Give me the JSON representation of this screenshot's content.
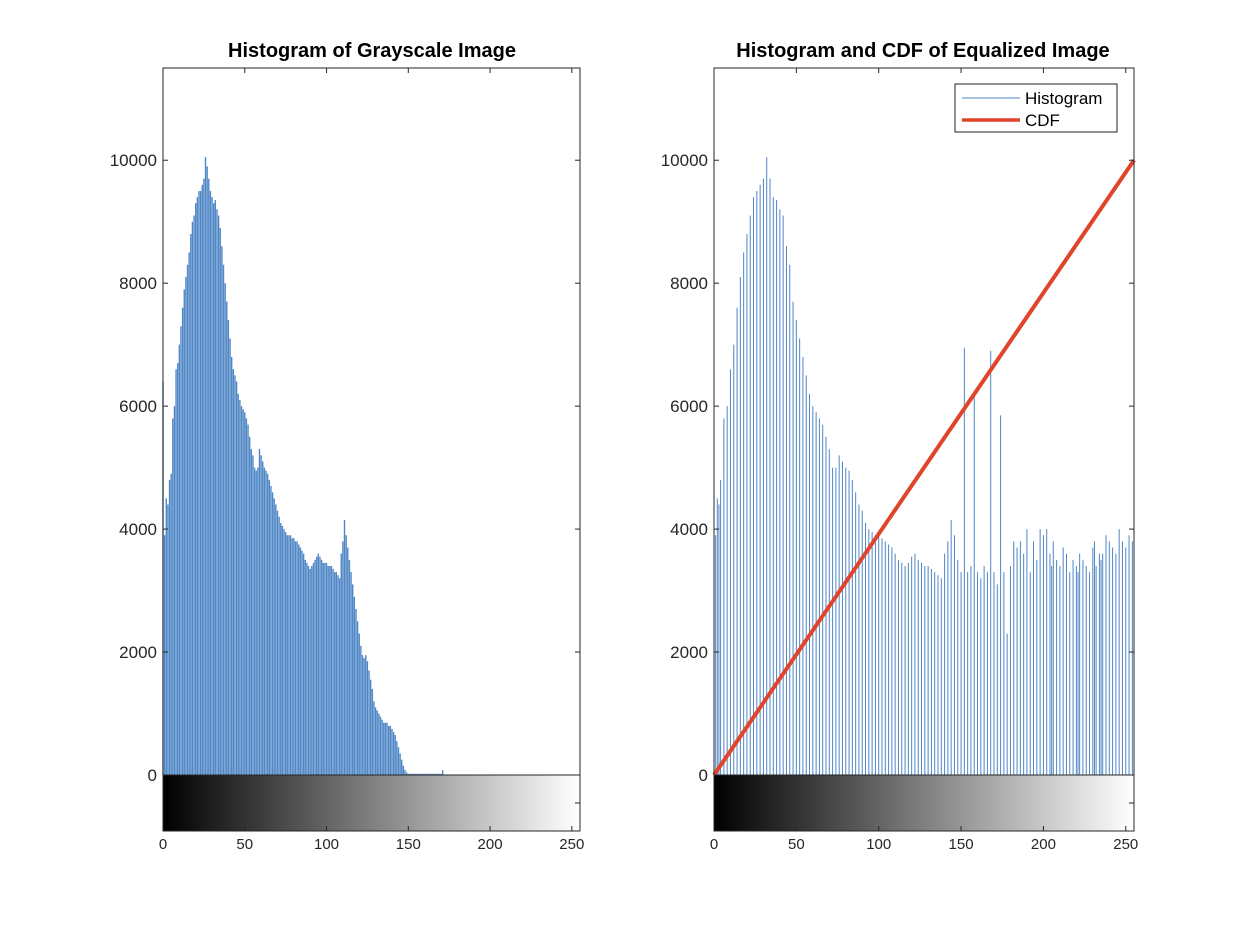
{
  "colors": {
    "histogram": "#4f86c6",
    "cdf": "#e0442a",
    "axis": "#262626"
  },
  "chart_data": [
    {
      "type": "bar",
      "title": "Histogram of Grayscale Image",
      "xlim": [
        0,
        255
      ],
      "ylim": [
        0,
        11500
      ],
      "yticks": [
        0,
        2000,
        4000,
        6000,
        8000,
        10000
      ],
      "xticks": [
        0,
        50,
        100,
        150,
        200,
        250
      ],
      "colorbar": "grayscale 0-255 below x-axis",
      "series": [
        {
          "x_start": 0,
          "values": [
            6400,
            3900,
            4500,
            4400,
            4800,
            4900,
            5800,
            6000,
            6600,
            6700,
            7000,
            7300,
            7600,
            7900,
            8100,
            8300,
            8500,
            8800,
            9000,
            9100,
            9300,
            9400,
            9500,
            9500,
            9600,
            9700,
            10050,
            9900,
            9700,
            9500,
            9400,
            9300,
            9350,
            9200,
            9100,
            8900,
            8600,
            8300,
            8000,
            7700,
            7400,
            7100,
            6800,
            6600,
            6500,
            6400,
            6200,
            6100,
            6000,
            5950,
            5900,
            5800,
            5700,
            5500,
            5300,
            5200,
            5000,
            4950,
            5000,
            5300,
            5200,
            5100,
            5000,
            4950,
            4900,
            4800,
            4700,
            4600,
            4500,
            4400,
            4300,
            4200,
            4100,
            4050,
            4000,
            3950,
            3900,
            3900,
            3900,
            3850,
            3850,
            3800,
            3800,
            3750,
            3700,
            3650,
            3600,
            3500,
            3450,
            3400,
            3350,
            3400,
            3450,
            3500,
            3550,
            3600,
            3550,
            3500,
            3450,
            3450,
            3450,
            3400,
            3400,
            3400,
            3350,
            3300,
            3300,
            3250,
            3200,
            3600,
            3800,
            4150,
            3900,
            3700,
            3500,
            3300,
            3100,
            2900,
            2700,
            2500,
            2300,
            2100,
            1950,
            1900,
            1950,
            1850,
            1700,
            1550,
            1400,
            1200,
            1100,
            1050,
            1000,
            950,
            900,
            850,
            850,
            850,
            800,
            800,
            750,
            700,
            650,
            550,
            450,
            350,
            250,
            150,
            80,
            40,
            20,
            20,
            20,
            20,
            20,
            20,
            20,
            20,
            20,
            20,
            20,
            20,
            20,
            20,
            20,
            20,
            20,
            20,
            20,
            20,
            20,
            80
          ]
        }
      ]
    },
    {
      "type": "bar",
      "title": "Histogram and CDF of Equalized Image",
      "xlim": [
        0,
        255
      ],
      "ylim": [
        0,
        11500
      ],
      "yticks": [
        0,
        2000,
        4000,
        6000,
        8000,
        10000
      ],
      "xticks": [
        0,
        50,
        100,
        150,
        200,
        250
      ],
      "colorbar": "grayscale 0-255 below x-axis",
      "legend": [
        "Histogram",
        "CDF"
      ],
      "legend_position": "top-right",
      "series": [
        {
          "name": "Histogram",
          "x": [
            0,
            1,
            2,
            3,
            4,
            6,
            8,
            10,
            12,
            14,
            16,
            18,
            20,
            22,
            24,
            26,
            28,
            30,
            32,
            34,
            36,
            38,
            40,
            42,
            44,
            46,
            48,
            50,
            52,
            54,
            56,
            58,
            60,
            62,
            64,
            66,
            68,
            70,
            72,
            74,
            76,
            78,
            80,
            82,
            84,
            86,
            88,
            90,
            92,
            94,
            96,
            98,
            100,
            102,
            104,
            106,
            108,
            110,
            112,
            114,
            116,
            118,
            120,
            122,
            124,
            126,
            128,
            130,
            132,
            134,
            136,
            138,
            140,
            142,
            144,
            146,
            148,
            150,
            152,
            154,
            156,
            158,
            160,
            162,
            164,
            166,
            168,
            170,
            172,
            174,
            176,
            178,
            180,
            182,
            184,
            186,
            188,
            190,
            192,
            194,
            196,
            198,
            200,
            202,
            204,
            205,
            206,
            208,
            210,
            212,
            214,
            216,
            218,
            220,
            221,
            222,
            224,
            226,
            228,
            230,
            231,
            232,
            234,
            235,
            236,
            238,
            240,
            242,
            244,
            246,
            248,
            250,
            252,
            254
          ],
          "values": [
            6400,
            3900,
            4500,
            4400,
            4800,
            5800,
            6000,
            6600,
            7000,
            7600,
            8100,
            8500,
            8800,
            9100,
            9400,
            9500,
            9600,
            9700,
            10050,
            9700,
            9400,
            9350,
            9200,
            9100,
            8600,
            8300,
            7700,
            7400,
            7100,
            6800,
            6500,
            6200,
            6000,
            5900,
            5800,
            5700,
            5500,
            5300,
            5000,
            5000,
            5200,
            5100,
            5000,
            4950,
            4800,
            4600,
            4400,
            4300,
            4100,
            4000,
            3950,
            3900,
            3900,
            3850,
            3800,
            3750,
            3700,
            3600,
            3500,
            3450,
            3400,
            3450,
            3550,
            3600,
            3500,
            3450,
            3400,
            3400,
            3350,
            3300,
            3250,
            3200,
            3600,
            3800,
            4150,
            3900,
            3500,
            3300,
            6950,
            3300,
            3400,
            6250,
            3300,
            3200,
            3400,
            3300,
            6900,
            3300,
            3100,
            5850,
            3300,
            2300,
            3400,
            3800,
            3700,
            3800,
            3600,
            4000,
            3300,
            3800,
            3500,
            4000,
            3900,
            4000,
            3600,
            3400,
            3800,
            3500,
            3400,
            3700,
            3600,
            3300,
            3500,
            3400,
            3300,
            3600,
            3500,
            3400,
            3300,
            3700,
            3800,
            3400,
            3600,
            3500,
            3600,
            3900,
            3800,
            3700,
            3600,
            4000,
            3800,
            3700,
            3900,
            3800
          ]
        },
        {
          "name": "CDF",
          "x": [
            0,
            255
          ],
          "values": [
            0,
            10000
          ]
        }
      ]
    }
  ]
}
